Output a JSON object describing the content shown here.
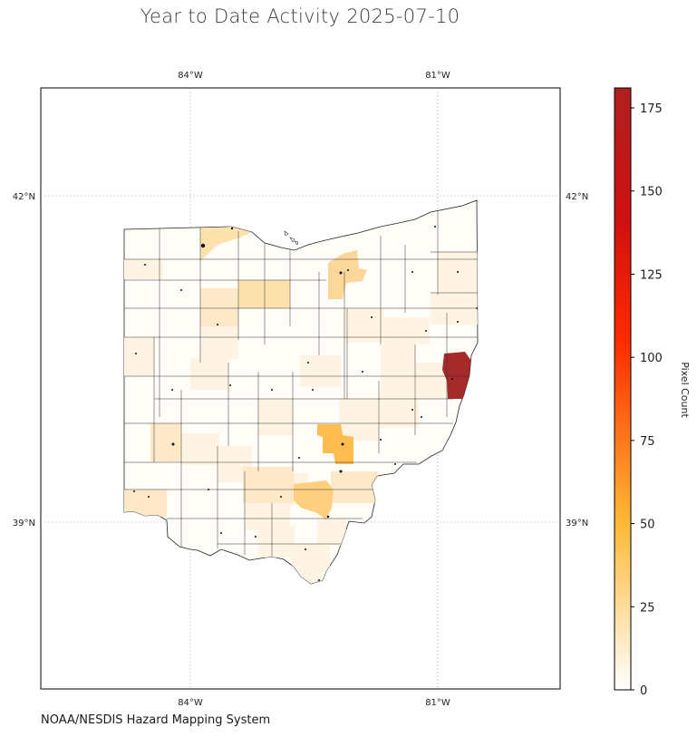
{
  "title": "Year to Date Activity 2025-07-10",
  "credit": "NOAA/NESDIS Hazard Mapping System",
  "map": {
    "lon_labels": [
      "84°W",
      "81°W"
    ],
    "lat_labels": [
      "42°N",
      "39°N"
    ],
    "region": "Ohio counties",
    "gridlines": true
  },
  "colorbar": {
    "label": "Pixel Count",
    "ticks": [
      "0",
      "25",
      "50",
      "75",
      "100",
      "125",
      "150",
      "175"
    ],
    "min": 0,
    "max": 181,
    "colormap": [
      "#ffffff",
      "#ffb833",
      "#ff2a00",
      "#b02020"
    ]
  },
  "highlights": [
    {
      "area": "eastern border county",
      "value": 181,
      "color": "#a52a2a"
    },
    {
      "area": "central county",
      "value": 52,
      "color": "#fdbd4f"
    },
    {
      "area": "south-central county",
      "value": 38,
      "color": "#fdcf7f"
    },
    {
      "area": "north-central county",
      "value": 22,
      "color": "#fde2ae"
    }
  ]
}
